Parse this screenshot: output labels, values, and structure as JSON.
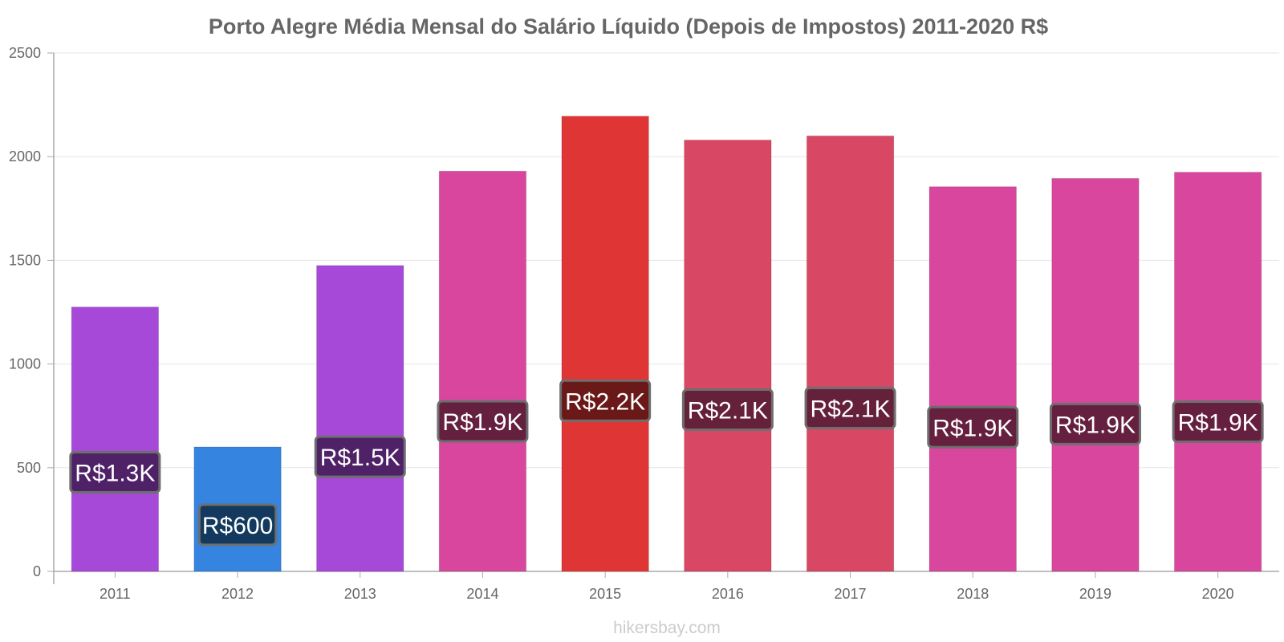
{
  "chart_data": {
    "type": "bar",
    "title": "Porto Alegre Média Mensal do Salário Líquido (Depois de Impostos) 2011-2020 R$",
    "categories": [
      "2011",
      "2012",
      "2013",
      "2014",
      "2015",
      "2016",
      "2017",
      "2018",
      "2019",
      "2020"
    ],
    "values": [
      1275,
      600,
      1475,
      1930,
      2195,
      2080,
      2100,
      1855,
      1895,
      1925
    ],
    "data_labels": [
      "R$1.3K",
      "R$600",
      "R$1.5K",
      "R$1.9K",
      "R$2.2K",
      "R$2.1K",
      "R$2.1K",
      "R$1.9K",
      "R$1.9K",
      "R$1.9K"
    ],
    "bar_colors": [
      "#a749d8",
      "#3584e0",
      "#a749d8",
      "#d8479d",
      "#e03535",
      "#d84763",
      "#d84763",
      "#d8479d",
      "#d8479d",
      "#d8479d"
    ],
    "label_bg_colors": [
      "#4f2268",
      "#133a5e",
      "#4f2268",
      "#65203f",
      "#6a1818",
      "#65203a",
      "#65203a",
      "#65203f",
      "#65203f",
      "#65203f"
    ],
    "y_ticks": [
      "0",
      "500",
      "1000",
      "1500",
      "2000",
      "2500"
    ],
    "ylim": [
      0,
      2500
    ],
    "xlabel": "",
    "ylabel": "",
    "grid": true,
    "legend": "none"
  },
  "footer": {
    "source": "hikersbay.com"
  }
}
